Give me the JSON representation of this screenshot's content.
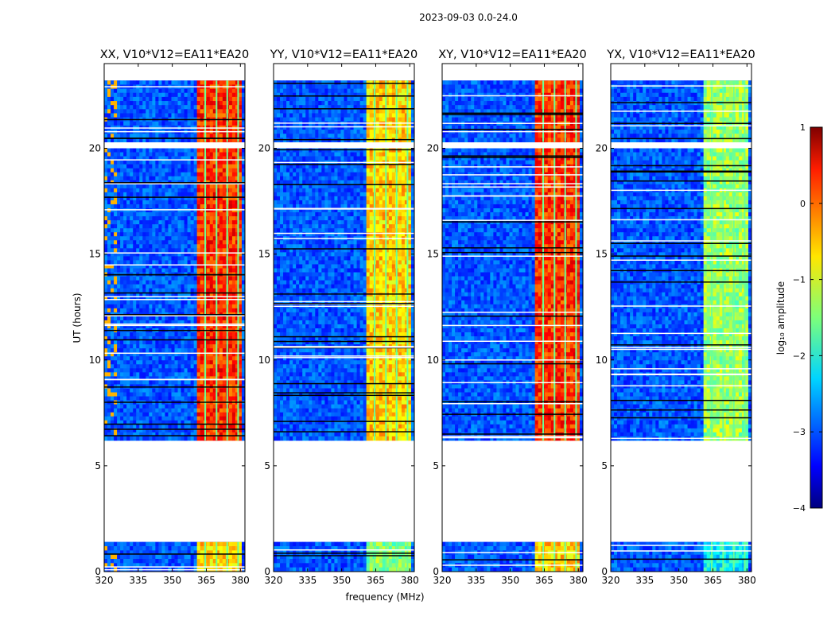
{
  "chart_data": {
    "type": "heatmap",
    "suptitle": "2023-09-03 0.0-24.0",
    "xlabel": "frequency (MHz)",
    "ylabel": "UT (hours)",
    "xlim": [
      320,
      382
    ],
    "ylim": [
      0,
      24
    ],
    "xticks": [
      "320",
      "335",
      "350",
      "365",
      "380"
    ],
    "yticks": [
      "0",
      "5",
      "10",
      "15",
      "20"
    ],
    "panels": [
      {
        "title": "XX, V10*V12=EA11*EA20",
        "band_level": 0.3,
        "left_rfi_level": -0.5
      },
      {
        "title": "YY, V10*V12=EA11*EA20",
        "band_level": -0.5,
        "left_rfi_level": -3.5
      },
      {
        "title": "XY, V10*V12=EA11*EA20",
        "band_level": 0.3,
        "left_rfi_level": -3.0
      },
      {
        "title": "YX, V10*V12=EA11*EA20",
        "band_level": -1.2,
        "left_rfi_level": -3.2
      }
    ],
    "data_coverage_hours": [
      [
        0.0,
        1.4
      ],
      [
        6.2,
        20.0
      ],
      [
        20.3,
        23.2
      ]
    ],
    "bright_band_MHz": [
      361,
      381
    ],
    "colorbar": {
      "label": "log₁₀ amplitude",
      "range": [
        -4,
        1
      ],
      "ticks": [
        "1",
        "0",
        "−1",
        "−2",
        "−3",
        "−4"
      ],
      "colormap": "jet"
    }
  }
}
